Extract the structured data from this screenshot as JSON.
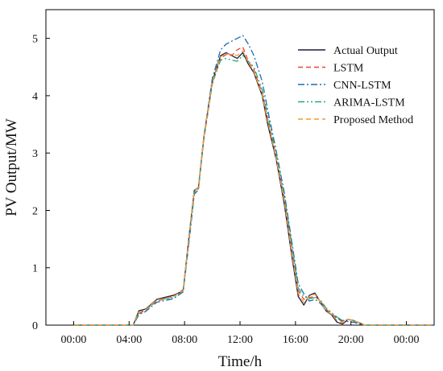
{
  "chart_data": {
    "type": "line",
    "xlabel": "Time/h",
    "ylabel": "PV Output/MW",
    "x_unit": "hours",
    "xlim": [
      -2,
      26
    ],
    "ylim": [
      0,
      5.5
    ],
    "xticks": [
      0,
      4,
      8,
      12,
      16,
      20,
      24
    ],
    "xtick_labels": [
      "00:00",
      "04:00",
      "08:00",
      "12:00",
      "16:00",
      "20:00",
      "00:00"
    ],
    "yticks": [
      0,
      1,
      2,
      3,
      4,
      5
    ],
    "ytick_labels": [
      "0",
      "1",
      "2",
      "3",
      "4",
      "5"
    ],
    "grid": false,
    "legend": {
      "position": "top-right",
      "entries": [
        "Actual Output",
        "LSTM",
        "CNN-LSTM",
        "ARIMA-LSTM",
        "Proposed Method"
      ]
    },
    "series": [
      {
        "name": "Actual Output",
        "color": "#1f1a3d",
        "dash": "solid",
        "x": [
          0,
          4.3,
          4.7,
          5.2,
          6,
          7.2,
          7.9,
          8.3,
          8.7,
          9.0,
          9.4,
          10.0,
          10.6,
          11.0,
          11.4,
          11.8,
          12.2,
          12.6,
          13.0,
          13.6,
          14.0,
          14.6,
          15.2,
          15.8,
          16.2,
          16.6,
          17.0,
          17.4,
          17.8,
          18.2,
          18.6,
          19.0,
          19.4,
          19.8,
          20.2,
          20.6,
          21.0,
          26
        ],
        "y": [
          0,
          0,
          0.25,
          0.28,
          0.45,
          0.52,
          0.6,
          1.5,
          2.35,
          2.4,
          3.3,
          4.25,
          4.7,
          4.75,
          4.7,
          4.65,
          4.75,
          4.55,
          4.4,
          4.0,
          3.5,
          2.9,
          2.1,
          1.1,
          0.5,
          0.35,
          0.52,
          0.56,
          0.4,
          0.25,
          0.18,
          0.05,
          0.02,
          0.1,
          0.08,
          0.04,
          0.0,
          0
        ]
      },
      {
        "name": "LSTM",
        "color": "#e8413c",
        "dash": "dashed",
        "x": [
          0,
          4.3,
          4.7,
          5.2,
          6,
          7.2,
          7.9,
          8.3,
          8.7,
          9.0,
          9.4,
          10.0,
          10.6,
          11.0,
          11.4,
          11.8,
          12.2,
          12.6,
          13.0,
          13.6,
          14.0,
          14.6,
          15.2,
          15.8,
          16.2,
          16.6,
          17.0,
          17.4,
          17.8,
          18.2,
          18.6,
          19.0,
          19.4,
          19.8,
          20.2,
          20.6,
          21.0,
          26
        ],
        "y": [
          0,
          0,
          0.2,
          0.26,
          0.42,
          0.5,
          0.62,
          1.45,
          2.3,
          2.38,
          3.25,
          4.2,
          4.65,
          4.72,
          4.7,
          4.8,
          4.85,
          4.6,
          4.45,
          4.05,
          3.6,
          2.95,
          2.2,
          1.25,
          0.6,
          0.45,
          0.48,
          0.5,
          0.42,
          0.28,
          0.2,
          0.12,
          0.06,
          0.1,
          0.07,
          0.03,
          0.0,
          0
        ]
      },
      {
        "name": "CNN-LSTM",
        "color": "#1a6fb0",
        "dash": "dashdot",
        "x": [
          0,
          4.3,
          4.7,
          5.2,
          6,
          7.2,
          7.9,
          8.3,
          8.7,
          9.0,
          9.4,
          10.0,
          10.6,
          11.0,
          11.4,
          11.8,
          12.2,
          12.6,
          13.0,
          13.6,
          14.0,
          14.6,
          15.2,
          15.8,
          16.2,
          16.6,
          17.0,
          17.4,
          17.8,
          18.2,
          18.6,
          19.0,
          19.4,
          19.8,
          20.2,
          20.6,
          21.0,
          26
        ],
        "y": [
          0,
          0,
          0.18,
          0.24,
          0.4,
          0.46,
          0.58,
          1.4,
          2.28,
          2.36,
          3.3,
          4.3,
          4.8,
          4.9,
          4.95,
          5.0,
          5.05,
          4.9,
          4.7,
          4.25,
          3.75,
          3.05,
          2.3,
          1.35,
          0.72,
          0.55,
          0.42,
          0.45,
          0.38,
          0.26,
          0.18,
          0.12,
          0.08,
          0.06,
          0.05,
          0.02,
          0.0,
          0
        ]
      },
      {
        "name": "ARIMA-LSTM",
        "color": "#22a97a",
        "dash": "dashdotdot",
        "x": [
          0,
          4.3,
          4.7,
          5.2,
          6,
          7.2,
          7.9,
          8.3,
          8.7,
          9.0,
          9.4,
          10.0,
          10.6,
          11.0,
          11.4,
          11.8,
          12.2,
          12.6,
          13.0,
          13.6,
          14.0,
          14.6,
          15.2,
          15.8,
          16.2,
          16.6,
          17.0,
          17.4,
          17.8,
          18.2,
          18.6,
          19.0,
          19.4,
          19.8,
          20.2,
          20.6,
          21.0,
          26
        ],
        "y": [
          0,
          0,
          0.22,
          0.27,
          0.44,
          0.48,
          0.6,
          1.48,
          2.32,
          2.4,
          3.28,
          4.22,
          4.62,
          4.65,
          4.62,
          4.6,
          4.7,
          4.6,
          4.5,
          4.1,
          3.65,
          3.0,
          2.25,
          1.3,
          0.65,
          0.5,
          0.46,
          0.48,
          0.44,
          0.3,
          0.22,
          0.14,
          0.08,
          0.1,
          0.08,
          0.04,
          0.0,
          0
        ]
      },
      {
        "name": "Proposed Method",
        "color": "#f39a2b",
        "dash": "dashed",
        "x": [
          0,
          4.3,
          4.7,
          5.2,
          6,
          7.2,
          7.9,
          8.3,
          8.7,
          9.0,
          9.4,
          10.0,
          10.6,
          11.0,
          11.4,
          11.8,
          12.2,
          12.6,
          13.0,
          13.6,
          14.0,
          14.6,
          15.2,
          15.8,
          16.2,
          16.6,
          17.0,
          17.4,
          17.8,
          18.2,
          18.6,
          19.0,
          19.4,
          19.8,
          20.2,
          20.6,
          21.0,
          26
        ],
        "y": [
          0,
          0,
          0.23,
          0.27,
          0.44,
          0.5,
          0.6,
          1.48,
          2.34,
          2.4,
          3.3,
          4.24,
          4.68,
          4.73,
          4.72,
          4.7,
          4.78,
          4.58,
          4.42,
          4.02,
          3.55,
          2.92,
          2.15,
          1.15,
          0.55,
          0.4,
          0.5,
          0.54,
          0.4,
          0.26,
          0.19,
          0.08,
          0.04,
          0.1,
          0.08,
          0.04,
          0.0,
          0
        ]
      }
    ]
  }
}
